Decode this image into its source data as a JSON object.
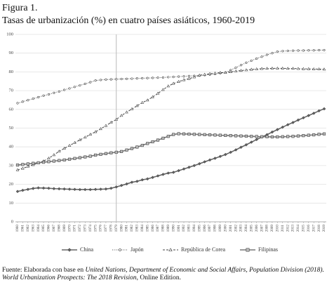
{
  "chart_data": {
    "type": "line",
    "title": "Figura 1.",
    "subtitle": "Tasas de urbanización (%) en cuatro países asiáticos, 1960-2019",
    "categories": [
      "1960",
      "1961",
      "1962",
      "1963",
      "1964",
      "1965",
      "1966",
      "1967",
      "1968",
      "1969",
      "1970",
      "1971",
      "1972",
      "1973",
      "1974",
      "1975",
      "1976",
      "1977",
      "1978",
      "1979",
      "1980",
      "1981",
      "1982",
      "1983",
      "1984",
      "1985",
      "1986",
      "1987",
      "1988",
      "1989",
      "1990",
      "1991",
      "1992",
      "1993",
      "1994",
      "1995",
      "1996",
      "1997",
      "1998",
      "1999",
      "2000",
      "2001",
      "2002",
      "2003",
      "2004",
      "2005",
      "2006",
      "2007",
      "2008",
      "2009",
      "2010",
      "2011",
      "2012",
      "2013",
      "2014",
      "2015",
      "2016",
      "2017",
      "2018",
      "2019"
    ],
    "series": [
      {
        "name": "China",
        "color": "#666666",
        "marker": "diamond",
        "dash": "solid",
        "values": [
          16.2,
          16.8,
          17.3,
          17.8,
          18.1,
          18.0,
          17.9,
          17.7,
          17.6,
          17.5,
          17.4,
          17.3,
          17.2,
          17.2,
          17.2,
          17.3,
          17.4,
          17.5,
          17.9,
          18.6,
          19.4,
          20.2,
          21.1,
          21.6,
          22.4,
          22.9,
          23.7,
          24.5,
          25.3,
          26.0,
          26.4,
          27.3,
          28.2,
          29.1,
          30.0,
          31.0,
          32.0,
          33.0,
          33.9,
          34.9,
          35.9,
          37.1,
          38.4,
          39.8,
          41.1,
          42.5,
          43.9,
          45.2,
          46.5,
          47.9,
          49.2,
          50.5,
          51.8,
          53.0,
          54.3,
          55.5,
          56.7,
          57.9,
          59.2,
          60.3
        ]
      },
      {
        "name": "Japón",
        "color": "#555555",
        "marker": "circle",
        "dash": "dotted",
        "values": [
          63.3,
          64.1,
          64.9,
          65.7,
          66.5,
          67.3,
          68.0,
          68.8,
          69.5,
          70.4,
          71.2,
          72.0,
          72.8,
          73.6,
          74.5,
          75.4,
          75.7,
          75.9,
          76.0,
          76.1,
          76.2,
          76.3,
          76.4,
          76.5,
          76.6,
          76.7,
          76.8,
          76.9,
          77.0,
          77.2,
          77.3,
          77.5,
          77.6,
          77.8,
          77.9,
          78.0,
          78.3,
          78.6,
          78.9,
          79.3,
          79.6,
          80.9,
          82.3,
          83.6,
          84.9,
          86.0,
          87.1,
          88.1,
          89.1,
          90.0,
          90.8,
          91.1,
          91.2,
          91.3,
          91.4,
          91.4,
          91.5,
          91.5,
          91.6,
          91.6
        ]
      },
      {
        "name": "República de Corea",
        "color": "#444444",
        "marker": "triangle",
        "dash": "dashed",
        "values": [
          27.7,
          28.5,
          29.5,
          30.4,
          31.3,
          32.4,
          33.9,
          35.7,
          37.6,
          39.2,
          40.7,
          42.2,
          43.7,
          45.1,
          46.6,
          48.0,
          49.6,
          51.3,
          53.0,
          54.6,
          56.7,
          58.5,
          60.2,
          61.9,
          63.6,
          64.9,
          66.6,
          68.5,
          70.5,
          72.4,
          73.8,
          74.8,
          75.7,
          76.4,
          77.2,
          78.2,
          78.6,
          79.0,
          79.3,
          79.6,
          79.6,
          80.0,
          80.4,
          80.7,
          81.0,
          81.3,
          81.5,
          81.7,
          81.8,
          81.9,
          81.9,
          81.9,
          81.8,
          81.8,
          81.7,
          81.6,
          81.6,
          81.5,
          81.5,
          81.4
        ]
      },
      {
        "name": "Filipinas",
        "color": "#777777",
        "marker": "square",
        "dash": "solid",
        "values": [
          30.3,
          30.6,
          30.9,
          31.2,
          31.5,
          31.8,
          32.1,
          32.4,
          32.7,
          33.0,
          33.4,
          33.8,
          34.2,
          34.6,
          35.0,
          35.6,
          36.0,
          36.4,
          36.8,
          37.1,
          37.5,
          38.3,
          39.1,
          39.9,
          40.8,
          41.8,
          42.7,
          43.6,
          44.6,
          45.6,
          46.6,
          47.0,
          46.9,
          46.8,
          46.7,
          46.6,
          46.5,
          46.4,
          46.3,
          46.2,
          46.1,
          46.0,
          45.9,
          45.8,
          45.7,
          45.6,
          45.5,
          45.4,
          45.4,
          45.3,
          45.3,
          45.4,
          45.5,
          45.6,
          45.8,
          46.0,
          46.2,
          46.4,
          46.7,
          46.9
        ]
      }
    ],
    "ylim": [
      0,
      100
    ],
    "yticks": [
      0,
      10,
      20,
      30,
      40,
      50,
      60,
      70,
      80,
      90,
      100
    ],
    "grid": true,
    "reference_category": "1979",
    "legend": "bottom",
    "source": [
      "Fuente: Elaborada con base en ",
      "United Nations, Department of Economic and Social Affairs, Population Division (2018). World Urbanization Prospects: The 2018 Revision",
      ", Online Edition."
    ]
  }
}
